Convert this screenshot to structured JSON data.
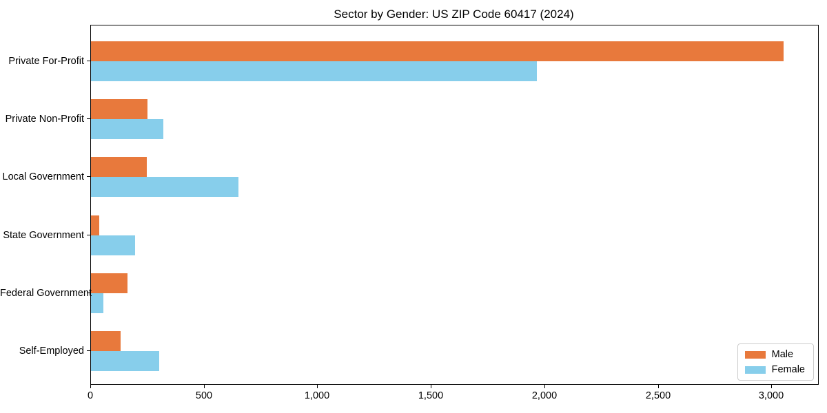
{
  "chart_data": {
    "type": "bar",
    "orientation": "horizontal",
    "title": "Sector by Gender: US ZIP Code 60417 (2024)",
    "xlabel": "",
    "ylabel": "",
    "categories": [
      "Private For-Profit",
      "Private Non-Profit",
      "Local Government",
      "State Government",
      "Federal Government",
      "Self-Employed"
    ],
    "series": [
      {
        "name": "Male",
        "color": "#E8793C",
        "values": [
          3050,
          250,
          245,
          35,
          160,
          130
        ]
      },
      {
        "name": "Female",
        "color": "#87CEEB",
        "values": [
          1965,
          320,
          650,
          195,
          55,
          300
        ]
      }
    ],
    "xlim": [
      0,
      3202
    ],
    "xticks": {
      "values": [
        0,
        500,
        1000,
        1500,
        2000,
        2500,
        3000
      ],
      "labels": [
        "0",
        "500",
        "1,000",
        "1,500",
        "2,000",
        "2,500",
        "3,000"
      ]
    },
    "grid": false,
    "legend_position": "lower right",
    "frame_color": "#000000",
    "background_color": "#ffffff"
  }
}
